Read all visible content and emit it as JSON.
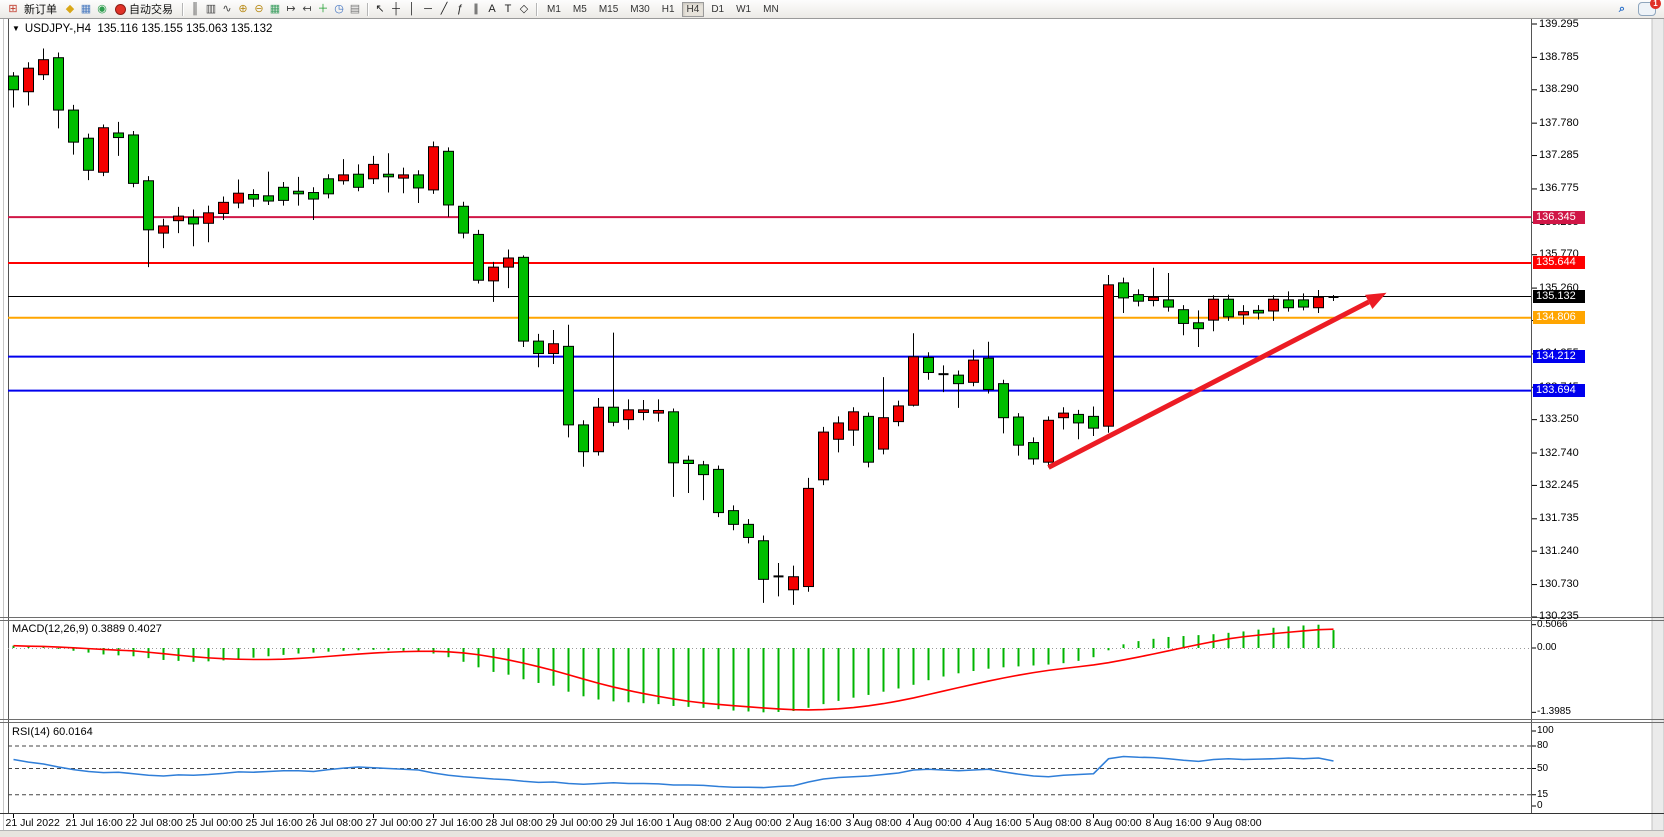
{
  "toolbar": {
    "new_order_label": "新订单",
    "autotrade_label": "自动交易",
    "chat_badge": "1",
    "icons_main": [
      {
        "n": "metaeditor-icon",
        "g": "◆",
        "c": "#d9a718"
      },
      {
        "n": "chart-window-icon",
        "g": "▦",
        "c": "#4a7ac0"
      },
      {
        "n": "signals-icon",
        "g": "◉",
        "c": "#2e9e4f"
      }
    ],
    "icons_chart": [
      {
        "n": "bar-chart-icon",
        "g": "║",
        "c": "#444"
      },
      {
        "n": "candlestick-chart-icon",
        "g": "▥",
        "c": "#444"
      },
      {
        "n": "line-chart-icon",
        "g": "∿",
        "c": "#444"
      },
      {
        "n": "zoom-in-icon",
        "g": "⊕",
        "c": "#b98c1a"
      },
      {
        "n": "zoom-out-icon",
        "g": "⊖",
        "c": "#b98c1a"
      },
      {
        "n": "tile-windows-icon",
        "g": "▦",
        "c": "#3a9e5f"
      },
      {
        "n": "auto-scroll-icon",
        "g": "↦",
        "c": "#444"
      },
      {
        "n": "chart-shift-icon",
        "g": "↤",
        "c": "#444"
      },
      {
        "n": "indicators-add-icon",
        "g": "＋",
        "c": "#1d9e2e"
      },
      {
        "n": "periods-icon",
        "g": "◷",
        "c": "#3a6ec0"
      },
      {
        "n": "templates-icon",
        "g": "▤",
        "c": "#777"
      }
    ],
    "icons_draw": [
      {
        "n": "cursor-icon",
        "g": "↖",
        "c": "#222"
      },
      {
        "n": "crosshair-icon",
        "g": "┼",
        "c": "#222"
      },
      {
        "n": "vertical-line-icon",
        "g": "│",
        "c": "#222"
      },
      {
        "n": "horizontal-line-icon",
        "g": "─",
        "c": "#222"
      },
      {
        "n": "trendline-icon",
        "g": "╱",
        "c": "#222"
      },
      {
        "n": "fibonacci-icon",
        "g": "ƒ",
        "c": "#222"
      },
      {
        "n": "channel-icon",
        "g": "∥",
        "c": "#222"
      },
      {
        "n": "text-icon",
        "g": "A",
        "c": "#222"
      },
      {
        "n": "label-icon",
        "g": "T",
        "c": "#222"
      },
      {
        "n": "shapes-icon",
        "g": "◇",
        "c": "#222"
      }
    ],
    "timeframes": [
      "M1",
      "M5",
      "M15",
      "M30",
      "H1",
      "H4",
      "D1",
      "W1",
      "MN"
    ],
    "active_timeframe": "H4"
  },
  "chart_data": {
    "type": "candlestick",
    "title_symbol": "USDJPY-,H4",
    "title_ohlc": "135.116 135.155 135.063 135.132",
    "current_ohlc": {
      "open": 135.116,
      "high": 135.155,
      "low": 135.063,
      "close": 135.132
    },
    "collapse_glyph": "▼",
    "y_axis": {
      "min": 130.235,
      "max": 139.295,
      "ticks": [
        "139.295",
        "138.785",
        "138.290",
        "137.780",
        "137.285",
        "136.775",
        "136.265",
        "135.770",
        "135.260",
        "134.765",
        "134.255",
        "133.745",
        "133.250",
        "132.740",
        "132.245",
        "131.735",
        "131.240",
        "130.730",
        "130.235"
      ]
    },
    "x_labels": [
      "21 Jul 2022",
      "21 Jul 16:00",
      "22 Jul 08:00",
      "25 Jul 00:00",
      "25 Jul 16:00",
      "26 Jul 08:00",
      "27 Jul 00:00",
      "27 Jul 16:00",
      "28 Jul 08:00",
      "29 Jul 00:00",
      "29 Jul 16:00",
      "1 Aug 08:00",
      "2 Aug 00:00",
      "2 Aug 16:00",
      "3 Aug 08:00",
      "4 Aug 00:00",
      "4 Aug 16:00",
      "5 Aug 08:00",
      "8 Aug 00:00",
      "8 Aug 16:00",
      "9 Aug 08:00"
    ],
    "hlines": [
      {
        "price": 136.345,
        "label": "136.345",
        "color": "#d01646"
      },
      {
        "price": 135.644,
        "label": "135.644",
        "color": "#ff0000"
      },
      {
        "price": 135.132,
        "label": "135.132",
        "color": "#000000"
      },
      {
        "price": 134.806,
        "label": "134.806",
        "color": "#ffa500"
      },
      {
        "price": 134.212,
        "label": "134.212",
        "color": "#0000ee"
      },
      {
        "price": 133.694,
        "label": "133.694",
        "color": "#0000ee"
      }
    ],
    "trend_arrow": {
      "from_bar": 69,
      "from_price": 132.52,
      "to_bar": 92,
      "to_price": 135.25,
      "color": "#ec1c24"
    },
    "candles": [
      [
        138.56,
        138.02,
        138.5,
        138.29,
        "g"
      ],
      [
        138.71,
        138.05,
        138.62,
        138.26,
        "r"
      ],
      [
        138.92,
        138.44,
        138.75,
        138.52,
        "r"
      ],
      [
        138.86,
        137.7,
        138.78,
        137.98,
        "g"
      ],
      [
        138.06,
        137.3,
        137.98,
        137.49,
        "g"
      ],
      [
        137.62,
        136.91,
        137.55,
        137.06,
        "g"
      ],
      [
        137.76,
        136.97,
        137.71,
        137.03,
        "r"
      ],
      [
        137.8,
        137.28,
        137.63,
        137.56,
        "g"
      ],
      [
        137.66,
        136.8,
        137.6,
        136.86,
        "g"
      ],
      [
        136.97,
        135.58,
        136.9,
        136.15,
        "g"
      ],
      [
        136.32,
        135.87,
        136.21,
        136.1,
        "r"
      ],
      [
        136.5,
        136.1,
        136.36,
        136.29,
        "r"
      ],
      [
        136.46,
        135.9,
        136.34,
        136.24,
        "g"
      ],
      [
        136.52,
        135.96,
        136.41,
        136.25,
        "r"
      ],
      [
        136.66,
        136.3,
        136.57,
        136.4,
        "r"
      ],
      [
        136.92,
        136.48,
        136.71,
        136.56,
        "r"
      ],
      [
        136.77,
        136.5,
        136.69,
        136.62,
        "g"
      ],
      [
        137.04,
        136.53,
        136.67,
        136.59,
        "g"
      ],
      [
        136.88,
        136.52,
        136.8,
        136.6,
        "g"
      ],
      [
        136.96,
        136.52,
        136.74,
        136.7,
        "g"
      ],
      [
        136.8,
        136.3,
        136.72,
        136.62,
        "g"
      ],
      [
        137.0,
        136.63,
        136.93,
        136.7,
        "g"
      ],
      [
        137.23,
        136.84,
        136.99,
        136.9,
        "r"
      ],
      [
        137.15,
        136.74,
        137.0,
        136.8,
        "g"
      ],
      [
        137.28,
        136.85,
        137.15,
        136.93,
        "r"
      ],
      [
        137.32,
        136.72,
        137.0,
        136.96,
        "g"
      ],
      [
        137.1,
        136.71,
        136.99,
        136.94,
        "r"
      ],
      [
        137.06,
        136.56,
        136.99,
        136.79,
        "g"
      ],
      [
        137.5,
        136.7,
        137.42,
        136.76,
        "r"
      ],
      [
        137.41,
        136.35,
        137.35,
        136.53,
        "g"
      ],
      [
        136.58,
        136.02,
        136.51,
        136.1,
        "g"
      ],
      [
        136.15,
        135.33,
        136.08,
        135.38,
        "g"
      ],
      [
        135.66,
        135.05,
        135.58,
        135.37,
        "r"
      ],
      [
        135.85,
        135.26,
        135.72,
        135.58,
        "r"
      ],
      [
        135.76,
        134.36,
        135.73,
        134.45,
        "g"
      ],
      [
        134.56,
        134.05,
        134.45,
        134.26,
        "g"
      ],
      [
        134.62,
        134.1,
        134.41,
        134.26,
        "r"
      ],
      [
        134.7,
        132.98,
        134.37,
        133.17,
        "g"
      ],
      [
        133.24,
        132.53,
        133.17,
        132.76,
        "g"
      ],
      [
        133.58,
        132.7,
        133.44,
        132.76,
        "r"
      ],
      [
        134.58,
        133.15,
        133.44,
        133.21,
        "g"
      ],
      [
        133.56,
        133.1,
        133.4,
        133.25,
        "r"
      ],
      [
        133.55,
        133.24,
        133.4,
        133.36,
        "r"
      ],
      [
        133.56,
        133.22,
        133.39,
        133.35,
        "r"
      ],
      [
        133.42,
        132.07,
        133.37,
        132.59,
        "g"
      ],
      [
        132.7,
        132.13,
        132.63,
        132.58,
        "g"
      ],
      [
        132.62,
        132.02,
        132.56,
        132.41,
        "g"
      ],
      [
        132.55,
        131.76,
        132.49,
        131.83,
        "g"
      ],
      [
        131.94,
        131.56,
        131.86,
        131.65,
        "g"
      ],
      [
        131.73,
        131.36,
        131.65,
        131.45,
        "g"
      ],
      [
        131.48,
        130.45,
        131.4,
        130.81,
        "g"
      ],
      [
        131.06,
        130.55,
        130.87,
        130.84,
        "k"
      ],
      [
        131.02,
        130.42,
        130.85,
        130.65,
        "r"
      ],
      [
        132.36,
        130.62,
        132.2,
        130.7,
        "r"
      ],
      [
        133.14,
        132.25,
        133.06,
        132.33,
        "r"
      ],
      [
        133.3,
        132.75,
        133.2,
        132.95,
        "r"
      ],
      [
        133.44,
        132.85,
        133.37,
        133.09,
        "r"
      ],
      [
        133.36,
        132.52,
        133.3,
        132.6,
        "g"
      ],
      [
        133.9,
        132.72,
        133.28,
        132.8,
        "r"
      ],
      [
        133.54,
        133.15,
        133.46,
        133.22,
        "r"
      ],
      [
        134.57,
        133.45,
        134.21,
        133.47,
        "r"
      ],
      [
        134.28,
        133.86,
        134.2,
        133.97,
        "g"
      ],
      [
        134.08,
        133.67,
        133.96,
        133.93,
        "k"
      ],
      [
        134.0,
        133.43,
        133.93,
        133.8,
        "g"
      ],
      [
        134.32,
        133.76,
        134.16,
        133.82,
        "r"
      ],
      [
        134.44,
        133.65,
        134.19,
        133.71,
        "g"
      ],
      [
        133.86,
        133.04,
        133.8,
        133.28,
        "g"
      ],
      [
        133.35,
        132.7,
        133.29,
        132.86,
        "g"
      ],
      [
        132.98,
        132.56,
        132.9,
        132.65,
        "g"
      ],
      [
        133.3,
        132.52,
        133.24,
        132.6,
        "r"
      ],
      [
        133.44,
        133.1,
        133.35,
        133.28,
        "r"
      ],
      [
        133.4,
        132.95,
        133.33,
        133.2,
        "g"
      ],
      [
        133.45,
        133.0,
        133.3,
        133.12,
        "g"
      ],
      [
        135.46,
        133.05,
        135.31,
        133.15,
        "r"
      ],
      [
        135.42,
        134.88,
        135.34,
        135.11,
        "g"
      ],
      [
        135.24,
        134.98,
        135.16,
        135.06,
        "g"
      ],
      [
        135.57,
        134.98,
        135.12,
        135.07,
        "r"
      ],
      [
        135.49,
        134.9,
        135.08,
        134.97,
        "g"
      ],
      [
        135.0,
        134.54,
        134.93,
        134.72,
        "g"
      ],
      [
        134.92,
        134.36,
        134.73,
        134.64,
        "g"
      ],
      [
        135.15,
        134.6,
        135.09,
        134.77,
        "r"
      ],
      [
        135.16,
        134.76,
        135.09,
        134.82,
        "g"
      ],
      [
        135.0,
        134.7,
        134.9,
        134.85,
        "r"
      ],
      [
        135.0,
        134.78,
        134.92,
        134.88,
        "g"
      ],
      [
        135.15,
        134.76,
        135.09,
        134.91,
        "r"
      ],
      [
        135.21,
        134.9,
        135.08,
        134.96,
        "g"
      ],
      [
        135.18,
        134.92,
        135.08,
        134.97,
        "g"
      ],
      [
        135.23,
        134.88,
        135.12,
        134.96,
        "r"
      ],
      [
        135.155,
        135.063,
        135.132,
        135.116,
        "k"
      ]
    ],
    "candle_colors": {
      "g": "#00be00",
      "r": "#f40000",
      "k": "#000000",
      "outline": "#000000"
    },
    "macd": {
      "title": "MACD(12,26,9) 0.3889 0.4027",
      "value": 0.3889,
      "signal_value": 0.4027,
      "scale_labels": [
        "0.5066",
        "0.00",
        "-1.3985"
      ],
      "hist_color": "#00b400",
      "signal_color": "#ff0000",
      "hist": [
        0.05,
        0.03,
        0.02,
        -0.02,
        -0.06,
        -0.1,
        -0.14,
        -0.16,
        -0.18,
        -0.22,
        -0.26,
        -0.28,
        -0.3,
        -0.29,
        -0.27,
        -0.24,
        -0.21,
        -0.18,
        -0.15,
        -0.12,
        -0.1,
        -0.08,
        -0.06,
        -0.05,
        -0.04,
        -0.05,
        -0.06,
        -0.08,
        -0.12,
        -0.2,
        -0.3,
        -0.42,
        -0.52,
        -0.58,
        -0.68,
        -0.76,
        -0.82,
        -0.95,
        -1.05,
        -1.12,
        -1.16,
        -1.18,
        -1.2,
        -1.22,
        -1.26,
        -1.28,
        -1.3,
        -1.33,
        -1.36,
        -1.38,
        -1.3985,
        -1.39,
        -1.37,
        -1.3,
        -1.22,
        -1.15,
        -1.08,
        -1.02,
        -0.95,
        -0.88,
        -0.8,
        -0.7,
        -0.62,
        -0.55,
        -0.5,
        -0.45,
        -0.42,
        -0.4,
        -0.38,
        -0.36,
        -0.33,
        -0.28,
        -0.2,
        -0.05,
        0.08,
        0.15,
        0.2,
        0.24,
        0.26,
        0.28,
        0.3,
        0.33,
        0.36,
        0.4,
        0.44,
        0.47,
        0.49,
        0.5066,
        0.3889
      ]
    },
    "rsi": {
      "title": "RSI(14) 60.0164",
      "value": 60.0164,
      "line_color": "#2f7ed8",
      "levels": [
        80,
        50,
        15
      ],
      "scale_labels": [
        "100",
        "80",
        "50",
        "15",
        "0"
      ],
      "values": [
        62,
        58.5,
        56,
        52,
        48.5,
        46,
        44.5,
        45,
        43,
        41,
        40,
        41.5,
        41,
        42,
        43.5,
        45.5,
        45,
        46,
        47,
        47,
        46,
        48.5,
        50.5,
        52,
        51,
        50,
        49,
        48,
        44,
        41,
        39,
        37.5,
        36,
        35,
        33,
        31.5,
        32,
        30,
        29,
        30,
        31,
        30,
        30,
        29.5,
        28,
        28,
        27.5,
        26,
        25,
        25,
        24.5,
        26,
        27,
        32,
        36,
        38,
        39,
        40,
        42,
        44,
        48,
        49,
        48,
        47,
        48,
        49,
        45.5,
        42.5,
        40,
        39,
        41,
        42,
        43,
        63,
        66,
        65,
        64.5,
        63,
        61,
        59.5,
        62,
        63,
        62,
        62.5,
        63,
        64,
        63,
        64,
        60
      ]
    }
  }
}
